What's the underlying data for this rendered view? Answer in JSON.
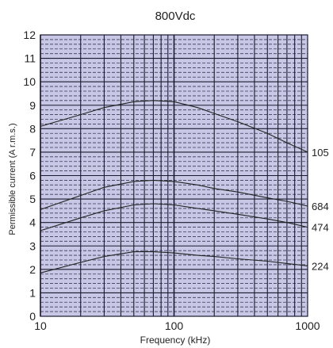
{
  "chart_data": {
    "type": "line",
    "title": "800Vdc",
    "xlabel": "Frequency (kHz)",
    "ylabel": "Permissible current (A r.m.s.)",
    "x_scale": "log",
    "xlim": [
      10,
      1000
    ],
    "ylim": [
      0,
      12
    ],
    "x_ticks": [
      10,
      100,
      1000
    ],
    "x_tick_labels": [
      "10",
      "100",
      "1000"
    ],
    "y_ticks": [
      0,
      1,
      2,
      3,
      4,
      5,
      6,
      7,
      8,
      9,
      10,
      11,
      12
    ],
    "y_tick_labels": [
      "0",
      "1",
      "2",
      "3",
      "4",
      "5",
      "6",
      "7",
      "8",
      "9",
      "10",
      "11",
      "12"
    ],
    "grid": true,
    "colors": {
      "plot_background": "#c8c8e6",
      "major_grid": "#1a1a2e",
      "minor_grid": "#3a3a55",
      "curve": "#222222"
    },
    "series": [
      {
        "name": "105",
        "x": [
          10,
          20,
          30,
          50,
          70,
          100,
          150,
          200,
          300,
          500,
          700,
          1000
        ],
        "y": [
          8.1,
          8.6,
          8.9,
          9.15,
          9.2,
          9.15,
          8.9,
          8.65,
          8.3,
          7.8,
          7.4,
          7.0
        ]
      },
      {
        "name": "684",
        "x": [
          10,
          20,
          30,
          50,
          70,
          100,
          150,
          200,
          300,
          500,
          700,
          1000
        ],
        "y": [
          4.55,
          5.15,
          5.5,
          5.75,
          5.8,
          5.75,
          5.6,
          5.45,
          5.3,
          5.05,
          4.9,
          4.7
        ]
      },
      {
        "name": "474",
        "x": [
          10,
          20,
          30,
          50,
          70,
          100,
          150,
          200,
          300,
          500,
          700,
          1000
        ],
        "y": [
          3.65,
          4.2,
          4.5,
          4.75,
          4.8,
          4.75,
          4.6,
          4.5,
          4.35,
          4.15,
          4.0,
          3.8
        ]
      },
      {
        "name": "224",
        "x": [
          10,
          20,
          30,
          50,
          70,
          100,
          150,
          200,
          300,
          500,
          700,
          1000
        ],
        "y": [
          1.85,
          2.3,
          2.55,
          2.75,
          2.75,
          2.7,
          2.6,
          2.55,
          2.45,
          2.35,
          2.25,
          2.15
        ]
      }
    ]
  }
}
